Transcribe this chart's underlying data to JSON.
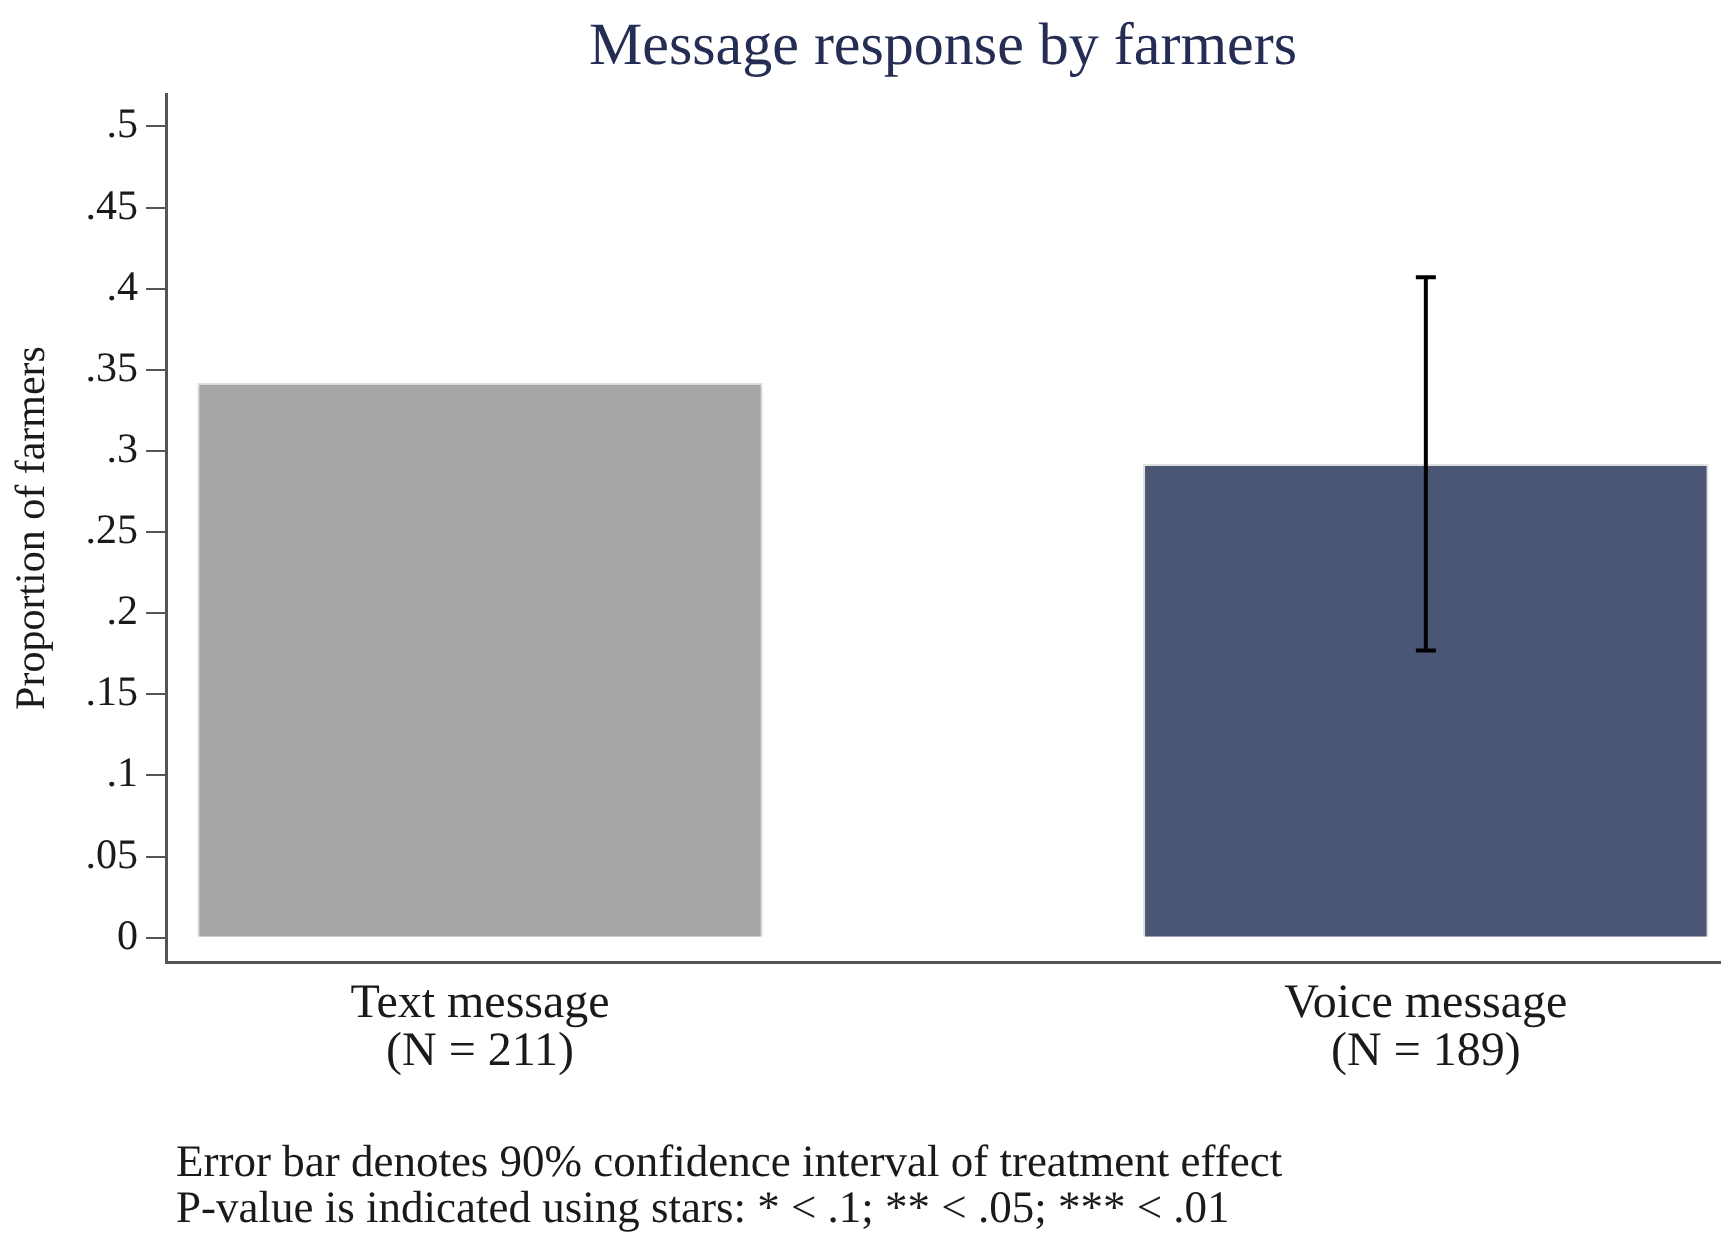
{
  "chart_data": {
    "type": "bar",
    "title": "Message response by farmers",
    "ylabel": "Proportion of farmers",
    "categories": [
      "Text message\n(N = 211)",
      "Voice message\n(N = 189)"
    ],
    "values": [
      0.342,
      0.292
    ],
    "colors": [
      "#a6a6a6",
      "#4b5674"
    ],
    "errors": [
      null,
      0.115
    ],
    "ylim": [
      -0.015,
      0.52
    ],
    "yticks": [
      0,
      {
        "value": 0.05,
        "label": ".05"
      },
      {
        "value": 0.1,
        "label": ".1"
      },
      {
        "value": 0.15,
        "label": ".15"
      },
      {
        "value": 0.2,
        "label": ".2"
      },
      {
        "value": 0.25,
        "label": ".25"
      },
      {
        "value": 0.3,
        "label": ".3"
      },
      {
        "value": 0.35,
        "label": ".35"
      },
      {
        "value": 0.4,
        "label": ".4"
      },
      {
        "value": 0.45,
        "label": ".45"
      },
      {
        "value": 0.5,
        "label": ".5"
      }
    ],
    "grid": false,
    "legend": false,
    "annotations": [
      "Error bar denotes 90% confidence interval of treatment effect",
      "P-value is indicated using stars: * < .1; ** < .05; *** < .01"
    ]
  }
}
